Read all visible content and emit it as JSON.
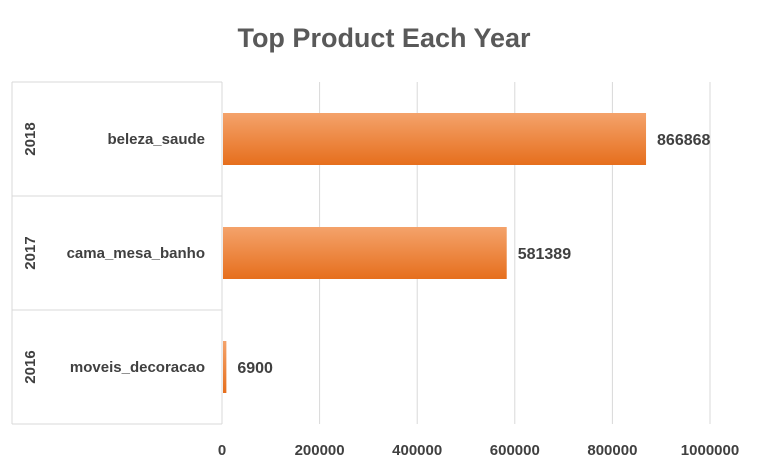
{
  "chart_data": {
    "type": "bar",
    "orientation": "horizontal",
    "title": "Top Product Each Year",
    "groups": [
      "2018",
      "2017",
      "2016"
    ],
    "categories": [
      "beleza_saude",
      "cama_mesa_banho",
      "moveis_decoracao"
    ],
    "values": [
      866868,
      581389,
      6900
    ],
    "data_labels": [
      "866868",
      "581389",
      "6900"
    ],
    "xlim": [
      0,
      1000000
    ],
    "x_ticks": [
      "0",
      "200000",
      "400000",
      "600000",
      "800000",
      "1000000"
    ],
    "grid": true,
    "legend": "none",
    "colors": {
      "bar": "#ED7D31",
      "bar_light": "#F4A36B",
      "grid": "#d9d9d9",
      "text": "#404040",
      "title": "#595959"
    }
  }
}
